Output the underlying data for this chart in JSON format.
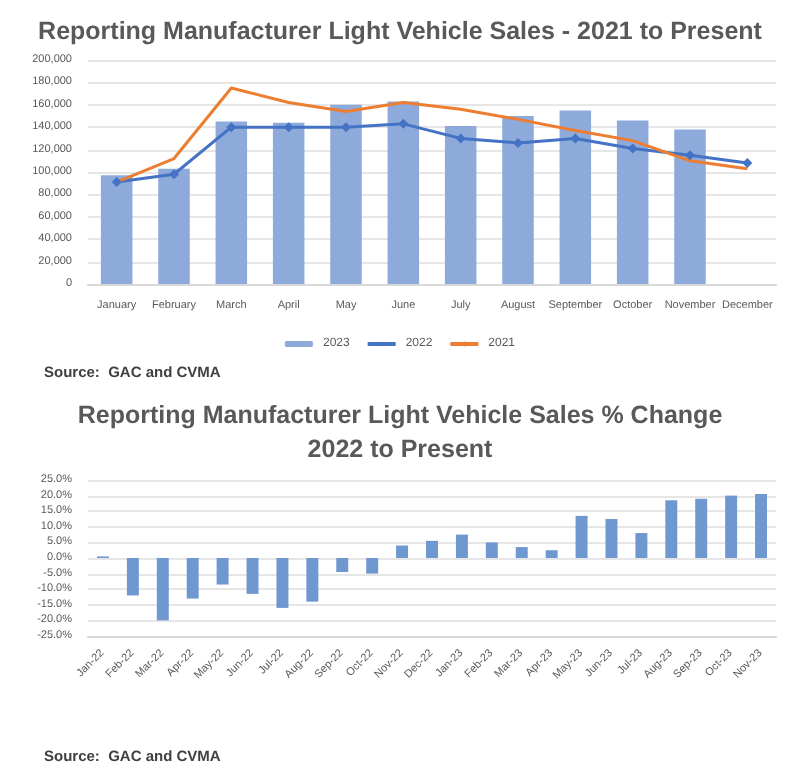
{
  "chart_data": [
    {
      "type": "bar",
      "title": "Reporting Manufacturer Light Vehicle Sales - 2021 to Present",
      "categories": [
        "January",
        "February",
        "March",
        "April",
        "May",
        "June",
        "July",
        "August",
        "September",
        "October",
        "November",
        "December"
      ],
      "series": [
        {
          "name": "2023",
          "color": "#8eaadb",
          "values": [
            97000,
            103000,
            145000,
            144000,
            160000,
            163000,
            141000,
            150000,
            155000,
            146000,
            138000,
            null
          ]
        },
        {
          "name": "2022",
          "type": "line",
          "color": "#4472c4",
          "marker": "diamond",
          "values": [
            91000,
            98000,
            140000,
            140000,
            140000,
            143000,
            130000,
            126000,
            130000,
            121000,
            115000,
            108000
          ]
        },
        {
          "name": "2021",
          "type": "line",
          "color": "#ed7d31",
          "marker": "none",
          "values": [
            91000,
            112000,
            175000,
            162000,
            154000,
            162000,
            156000,
            147000,
            137000,
            128000,
            110000,
            103000
          ]
        }
      ],
      "ylim": [
        0,
        200000
      ],
      "yticks": [
        {
          "value": 0,
          "label": "0"
        },
        {
          "value": 20000,
          "label": "20,000"
        },
        {
          "value": 40000,
          "label": "40,000"
        },
        {
          "value": 60000,
          "label": "60,000"
        },
        {
          "value": 80000,
          "label": "80,000"
        },
        {
          "value": 100000,
          "label": "100,000"
        },
        {
          "value": 120000,
          "label": "120,000"
        },
        {
          "value": 140000,
          "label": "140,000"
        },
        {
          "value": 160000,
          "label": "160,000"
        },
        {
          "value": 180000,
          "label": "180,000"
        },
        {
          "value": 200000,
          "label": "200,000"
        }
      ],
      "grid": "y",
      "legend": "bottom",
      "annotations": [
        "Source:  GAC and CVMA"
      ]
    },
    {
      "type": "bar",
      "title": "Reporting Manufacturer Light Vehicle Sales % Change\n2022 to Present",
      "categories": [
        "Jan-22",
        "Feb-22",
        "Mar-22",
        "Apr-22",
        "May-22",
        "Jun-22",
        "Jul-22",
        "Aug-22",
        "Sep-22",
        "Oct-22",
        "Nov-22",
        "Dec-22",
        "Jan-23",
        "Feb-23",
        "Mar-23",
        "Apr-23",
        "May-23",
        "Jun-23",
        "Jul-23",
        "Aug-23",
        "Sep-23",
        "Oct-23",
        "Nov-23"
      ],
      "values": [
        0.5,
        -12,
        -20,
        -13,
        -8.5,
        -11.5,
        -16,
        -14,
        -4.5,
        -5,
        4,
        5.5,
        7.5,
        5,
        3.5,
        2.5,
        13.5,
        12.5,
        8,
        18.5,
        19,
        20,
        20.5
      ],
      "color": "#6f97d0",
      "ylim": [
        -25,
        25
      ],
      "yticks": [
        {
          "value": -25,
          "label": "-25.0%"
        },
        {
          "value": -20,
          "label": "-20.0%"
        },
        {
          "value": -15,
          "label": "-15.0%"
        },
        {
          "value": -10,
          "label": "-10.0%"
        },
        {
          "value": -5,
          "label": "-5.0%"
        },
        {
          "value": 0,
          "label": "0.0%"
        },
        {
          "value": 5,
          "label": "5.0%"
        },
        {
          "value": 10,
          "label": "10.0%"
        },
        {
          "value": 15,
          "label": "15.0%"
        },
        {
          "value": 20,
          "label": "20.0%"
        },
        {
          "value": 25,
          "label": "25.0%"
        }
      ],
      "grid": "y",
      "annotations": [
        "Source:  GAC and CVMA"
      ]
    }
  ]
}
